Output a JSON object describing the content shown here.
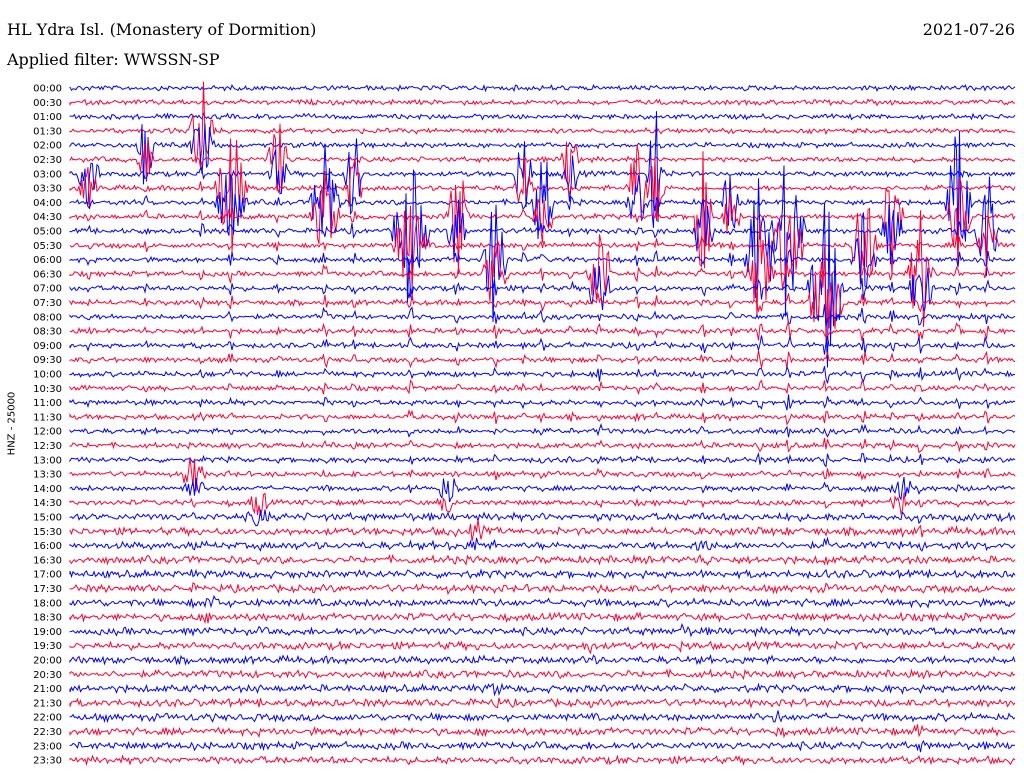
{
  "header": {
    "station": "HL Ydra Isl. (Monastery of Dormition)",
    "date": "2021-07-26",
    "filter": "Applied filter: WWSSN-SP"
  },
  "chart_data": {
    "type": "line",
    "title": "HL Ydra Isl. (Monastery of Dormition)",
    "subtitle": "Applied filter: WWSSN-SP",
    "date": "2021-07-26",
    "ylabel": "HNZ - 25000",
    "xlabel": "",
    "y_ticks": [
      "00:00",
      "00:30",
      "01:00",
      "01:30",
      "02:00",
      "02:30",
      "03:00",
      "03:30",
      "04:00",
      "04:30",
      "05:00",
      "05:30",
      "06:00",
      "06:30",
      "07:00",
      "07:30",
      "08:00",
      "08:30",
      "09:00",
      "09:30",
      "10:00",
      "10:30",
      "11:00",
      "11:30",
      "12:00",
      "12:30",
      "13:00",
      "13:30",
      "14:00",
      "14:30",
      "15:00",
      "15:30",
      "16:00",
      "16:30",
      "17:00",
      "17:30",
      "18:00",
      "18:30",
      "19:00",
      "19:30",
      "20:00",
      "20:30",
      "21:00",
      "21:30",
      "22:00",
      "22:30",
      "23:00",
      "23:30"
    ],
    "series_colors": [
      "#0000ff",
      "#ff0033"
    ],
    "trace_interval_minutes": 30,
    "trace_duration_minutes": 30,
    "grid": false,
    "legend": "none"
  }
}
